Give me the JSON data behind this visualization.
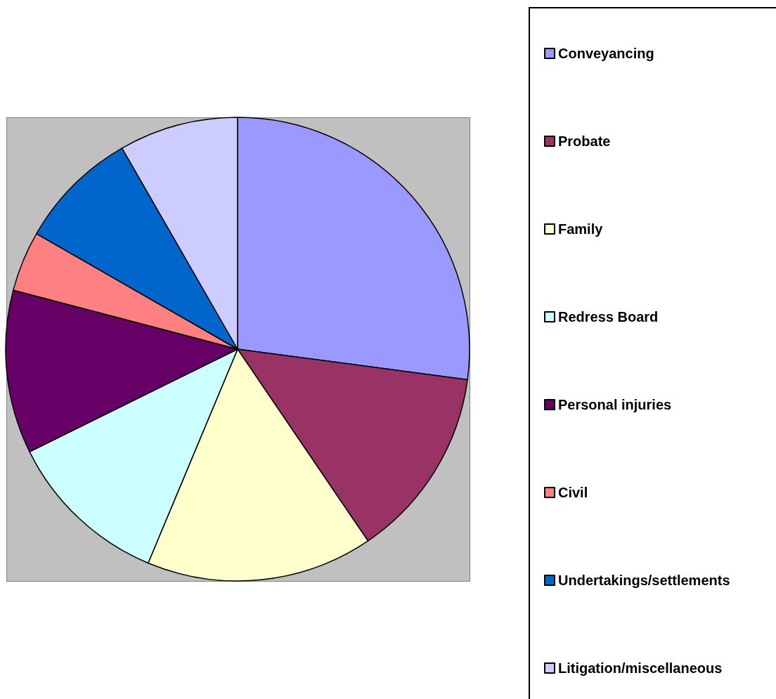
{
  "chart_data": {
    "type": "pie",
    "categories": [
      "Conveyancing",
      "Probate",
      "Family",
      "Redress Board",
      "Personal injuries",
      "Civil",
      "Undertakings/settlements",
      "Litigation/miscellaneous"
    ],
    "values": [
      27.1,
      13.4,
      15.8,
      11.4,
      11.4,
      4.2,
      8.4,
      8.3
    ],
    "colors": [
      "#9999ff",
      "#993366",
      "#ffffcc",
      "#ccffff",
      "#660066",
      "#ff8080",
      "#0066cc",
      "#ccccff"
    ],
    "legend": "right"
  }
}
